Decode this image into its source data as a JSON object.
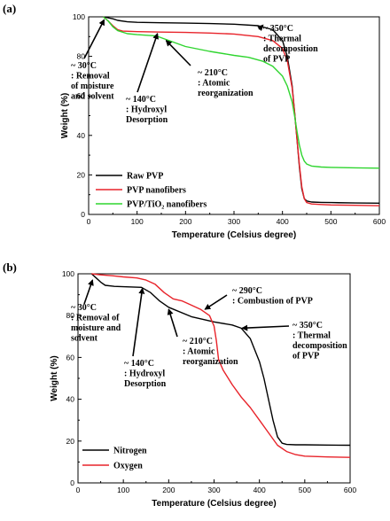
{
  "chart_data": [
    {
      "panel_label": "(a)",
      "type": "line",
      "xlabel": "Temperature (Celsius degree)",
      "ylabel": "Weight (%)",
      "xlim": [
        0,
        600
      ],
      "ylim": [
        0,
        100
      ],
      "xticks": [
        0,
        100,
        200,
        300,
        400,
        500,
        600
      ],
      "yticks": [
        0,
        20,
        40,
        60,
        80,
        100
      ],
      "legend_position": "bottom-left",
      "series": [
        {
          "name": "Raw PVP",
          "color": "#000000",
          "x": [
            30,
            50,
            60,
            80,
            100,
            150,
            200,
            250,
            300,
            350,
            380,
            400,
            410,
            420,
            425,
            430,
            435,
            440,
            445,
            450,
            460,
            480,
            500,
            550,
            600
          ],
          "y": [
            100,
            99,
            98.2,
            97.5,
            97.2,
            97,
            96.8,
            96.6,
            96.3,
            95.5,
            93.5,
            88,
            80,
            65,
            52,
            38,
            24,
            13,
            8,
            6.8,
            6.3,
            6.1,
            6,
            5.8,
            5.7
          ]
        },
        {
          "name": "PVP nanofibers",
          "color": "#e8232a",
          "x": [
            30,
            40,
            50,
            60,
            70,
            100,
            150,
            200,
            250,
            300,
            350,
            380,
            400,
            410,
            420,
            425,
            430,
            435,
            440,
            445,
            450,
            460,
            480,
            500,
            550,
            600
          ],
          "y": [
            100,
            98,
            95.5,
            93.5,
            92.8,
            92.5,
            92.3,
            92.1,
            91.8,
            91.3,
            90,
            88,
            84,
            78,
            64,
            52,
            38,
            25,
            14,
            8,
            6,
            5.3,
            5,
            4.8,
            4.6,
            4.4
          ]
        },
        {
          "name": "PVP/TiO₂ nanofibers",
          "color": "#2fd52f",
          "x": [
            30,
            40,
            50,
            60,
            80,
            100,
            140,
            160,
            200,
            250,
            300,
            330,
            360,
            380,
            400,
            410,
            420,
            425,
            430,
            435,
            440,
            445,
            450,
            460,
            480,
            500,
            550,
            600
          ],
          "y": [
            100,
            98,
            95,
            93,
            91.5,
            91,
            90.3,
            88.5,
            85,
            82.5,
            80.5,
            79.5,
            77.5,
            75,
            70,
            65,
            57,
            50,
            42,
            35,
            30,
            27,
            25.5,
            24.5,
            24,
            23.8,
            23.6,
            23.4
          ]
        }
      ],
      "annotations": [
        {
          "lines": [
            "~ 350°C",
            ": Thermal",
            "decomposition",
            "of PVP"
          ],
          "arrow_to": [
            360,
            95.8
          ]
        },
        {
          "lines": [
            "~ 30°C",
            ": Removal",
            "of moisture",
            "and solvent"
          ],
          "arrow_to": [
            32,
            98.5
          ]
        },
        {
          "lines": [
            "~ 140°C",
            ": Hydroxyl",
            "Desorption"
          ],
          "arrow_to": [
            142,
            91.5
          ]
        },
        {
          "lines": [
            "~ 210°C",
            ": Atomic",
            "reorganization"
          ],
          "arrow_to": [
            160,
            88
          ]
        }
      ]
    },
    {
      "panel_label": "(b)",
      "type": "line",
      "xlabel": "Temperature (Celsius degree)",
      "ylabel": "Weight (%)",
      "xlim": [
        0,
        600
      ],
      "ylim": [
        0,
        100
      ],
      "xticks": [
        0,
        100,
        200,
        300,
        400,
        500,
        600
      ],
      "yticks": [
        0,
        20,
        40,
        60,
        80,
        100
      ],
      "legend_position": "bottom-left",
      "series": [
        {
          "name": "Nitrogen",
          "color": "#000000",
          "x": [
            30,
            40,
            50,
            60,
            80,
            100,
            140,
            160,
            180,
            200,
            250,
            300,
            340,
            360,
            380,
            400,
            410,
            420,
            430,
            440,
            450,
            460,
            480,
            500,
            550,
            600
          ],
          "y": [
            100,
            98,
            96,
            94.5,
            94,
            93.8,
            93.5,
            91,
            87,
            84,
            79.5,
            77,
            75.5,
            74,
            69,
            58,
            50,
            40,
            30,
            22,
            19,
            18.4,
            18.2,
            18.2,
            18.1,
            18
          ],
          "color_note": "black"
        },
        {
          "name": "Oxygen",
          "color": "#e8232a",
          "x": [
            30,
            50,
            80,
            100,
            130,
            150,
            170,
            190,
            210,
            230,
            250,
            270,
            290,
            300,
            305,
            310,
            320,
            340,
            360,
            380,
            400,
            420,
            440,
            460,
            480,
            500,
            550,
            600
          ],
          "y": [
            100,
            99.5,
            99,
            98.5,
            98,
            97,
            95,
            91,
            88,
            87,
            85,
            83,
            80,
            75,
            68,
            59,
            54,
            47,
            41,
            36,
            30,
            24,
            18,
            15,
            13.5,
            12.8,
            12.4,
            12.2
          ]
        }
      ],
      "annotations": [
        {
          "lines": [
            "~ 290°C",
            ": Combustion of PVP"
          ],
          "arrow_to": [
            280,
            83
          ]
        },
        {
          "lines": [
            "~ 350°C",
            ": Thermal",
            "decomposition",
            "of PVP"
          ],
          "arrow_to": [
            362,
            74
          ]
        },
        {
          "lines": [
            "~ 30°C",
            ": Removal of",
            "moisture and",
            "solvent"
          ],
          "arrow_to": [
            32,
            97
          ]
        },
        {
          "lines": [
            "~ 140°C",
            ": Hydroxyl",
            "Desorption"
          ],
          "arrow_to": [
            142,
            93
          ]
        },
        {
          "lines": [
            "~ 210°C",
            ": Atomic",
            "reorganization"
          ],
          "arrow_to": [
            200,
            83
          ]
        }
      ]
    }
  ]
}
